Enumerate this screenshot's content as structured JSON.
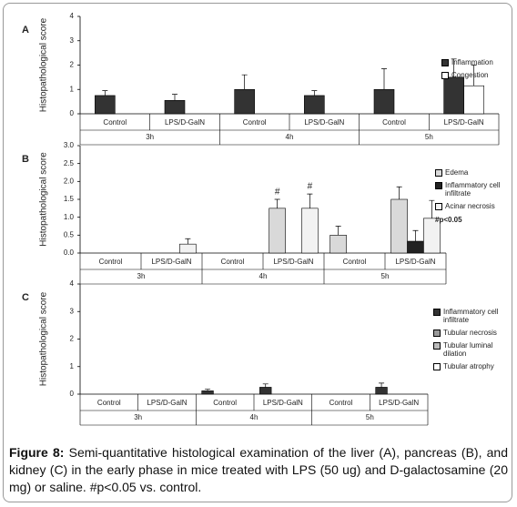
{
  "chart_data": [
    {
      "type": "bar",
      "panel": "A",
      "y_label": "Histopathological score",
      "categories": [
        "Control",
        "LPS/D-GalN",
        "Control",
        "LPS/D-GalN",
        "Control",
        "LPS/D-GalN"
      ],
      "groups": [
        "3h",
        "4h",
        "5h"
      ],
      "ylim": [
        0,
        4
      ],
      "yticks": [
        0,
        1,
        2,
        3,
        4
      ],
      "legend": "upper right",
      "series": [
        {
          "name": "Inflammation",
          "color": "#333333",
          "values": [
            0.75,
            0.55,
            1.0,
            0.75,
            1.0,
            1.5
          ],
          "errors": [
            0.2,
            0.25,
            0.6,
            0.2,
            0.85,
            0.75
          ]
        },
        {
          "name": "Congestion",
          "color": "#ffffff",
          "values": [
            0,
            0,
            0,
            0,
            0,
            1.15
          ],
          "errors": [
            null,
            null,
            null,
            null,
            null,
            0.85
          ]
        }
      ]
    },
    {
      "type": "bar",
      "panel": "B",
      "y_label": "Histopathological score",
      "categories": [
        "Control",
        "LPS/D-GalN",
        "Control",
        "LPS/D-GalN",
        "Control",
        "LPS/D-GalN"
      ],
      "groups": [
        "3h",
        "4h",
        "5h"
      ],
      "ylim": [
        0,
        3
      ],
      "yticks": [
        {
          "value": 0,
          "label": "0.0"
        },
        0.5,
        {
          "value": 1,
          "label": "1.0"
        },
        1.5,
        {
          "value": 2,
          "label": "2.0"
        },
        2.5,
        {
          "value": 3,
          "label": "3.0"
        }
      ],
      "legend": "right",
      "note": "#p<0.05",
      "series": [
        {
          "name": "Edema",
          "color": "#d9d9d9",
          "values": [
            0,
            0,
            0,
            1.25,
            0.5,
            1.5
          ],
          "errors": [
            null,
            null,
            null,
            0.25,
            0.25,
            0.35
          ],
          "flags": [
            null,
            null,
            null,
            "#",
            null,
            null
          ]
        },
        {
          "name": "Inflammatory cell infiltrate",
          "color": "#222222",
          "values": [
            0,
            0,
            0,
            0,
            0,
            0.33
          ],
          "errors": [
            null,
            null,
            null,
            null,
            null,
            0.3
          ],
          "flags": [
            null,
            null,
            null,
            null,
            null,
            null
          ]
        },
        {
          "name": "Acinar necrosis",
          "color": "#f2f2f2",
          "values": [
            0,
            0.25,
            0,
            1.25,
            0,
            0.97
          ],
          "errors": [
            null,
            0.15,
            null,
            0.4,
            null,
            0.5
          ],
          "flags": [
            null,
            null,
            null,
            "#",
            null,
            null
          ]
        }
      ]
    },
    {
      "type": "bar",
      "panel": "C",
      "y_label": "Histopathological score",
      "categories": [
        "Control",
        "LPS/D-GalN",
        "Control",
        "LPS/D-GalN",
        "Control",
        "LPS/D-GalN"
      ],
      "groups": [
        "3h",
        "4h",
        "5h"
      ],
      "ylim": [
        0,
        4
      ],
      "yticks": [
        0,
        1,
        2,
        3,
        4
      ],
      "legend": "right",
      "series": [
        {
          "name": "Inflammatory cell infiltrate",
          "color": "#333333",
          "values": [
            0,
            0,
            0.12,
            0.25,
            0,
            0.25
          ],
          "errors": [
            null,
            null,
            0.06,
            0.12,
            null,
            0.15
          ]
        },
        {
          "name": "Tubular necrosis",
          "color": "#999999",
          "values": [
            0,
            0,
            0,
            0,
            0,
            0
          ],
          "errors": [
            null,
            null,
            null,
            null,
            null,
            null
          ]
        },
        {
          "name": "Tubular luminal dilation",
          "color": "#bbbbbb",
          "values": [
            0,
            0,
            0,
            0,
            0,
            0
          ],
          "errors": [
            null,
            null,
            null,
            null,
            null,
            null
          ]
        },
        {
          "name": "Tubular atrophy",
          "color": "#ffffff",
          "values": [
            0,
            0,
            0,
            0,
            0,
            0
          ],
          "errors": [
            null,
            null,
            null,
            null,
            null,
            null
          ]
        }
      ]
    }
  ],
  "caption": {
    "label": "Figure 8:",
    "text": "Semi-quantitative histological examination of the liver (A), pancreas (B), and kidney (C) in the early phase in mice treated with LPS (50 ug) and D-galactosamine (20 mg) or saline. #p<0.05 vs. control."
  }
}
